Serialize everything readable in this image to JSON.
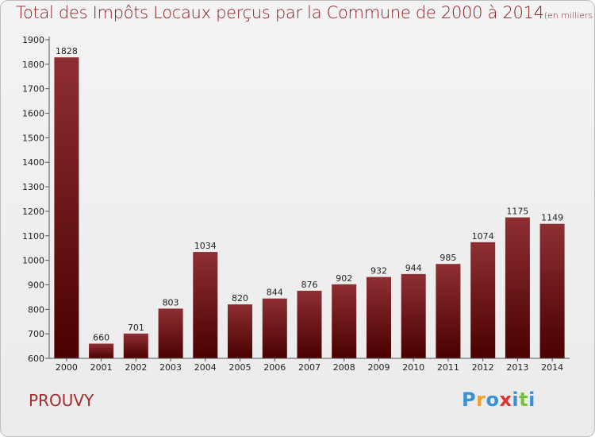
{
  "chart_data": {
    "type": "bar",
    "title": "Total des Impôts Locaux perçus par la Commune de 2000 à 2014",
    "subtitle": "(en milliers d'€)",
    "categories": [
      "2000",
      "2001",
      "2002",
      "2003",
      "2004",
      "2005",
      "2006",
      "2007",
      "2008",
      "2009",
      "2010",
      "2011",
      "2012",
      "2013",
      "2014"
    ],
    "values": [
      1828,
      660,
      701,
      803,
      1034,
      820,
      844,
      876,
      902,
      932,
      944,
      985,
      1074,
      1175,
      1149
    ],
    "yticks": [
      "600",
      "700",
      "800",
      "900",
      "1000",
      "1100",
      "1200",
      "1300",
      "1400",
      "1500",
      "1600",
      "1700",
      "1800",
      "1900"
    ],
    "ylim": [
      600,
      1900
    ],
    "xlabel": "",
    "ylabel": "",
    "bar_color_top": "#8e2f33",
    "bar_color_bottom": "#4a0000"
  },
  "commune": "PROUVY",
  "logo": {
    "letters": [
      "P",
      "r",
      "o",
      "x",
      "i",
      "t",
      "i"
    ],
    "colors": [
      "#3a8fd6",
      "#f0a030",
      "#3a8fd6",
      "#e03030",
      "#3a8fd6",
      "#7abf3a",
      "#3a8fd6"
    ]
  }
}
